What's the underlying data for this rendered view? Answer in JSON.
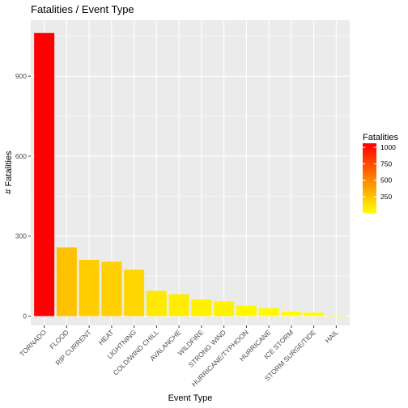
{
  "chart_data": {
    "type": "bar",
    "title": "Fatalities / Event Type",
    "xlabel": "Event Type",
    "ylabel": "# Fatalities",
    "categories": [
      "TORNADO",
      "FLOOD",
      "RIP CURRENT",
      "HEAT",
      "LIGHTNING",
      "COLD/WIND CHILL",
      "AVALANCHE",
      "WILDFIRE",
      "STRONG WIND",
      "HURRICANE/TYPHOON",
      "HURRICANE",
      "ICE STORM",
      "STORM SURGE/TIDE",
      "HAIL"
    ],
    "values": [
      1062,
      258,
      211,
      204,
      174,
      95,
      82,
      62,
      55,
      39,
      30,
      17,
      13,
      3
    ],
    "ylim": [
      -35,
      1110
    ],
    "yticks": [
      0,
      300,
      600,
      900
    ],
    "grid": true,
    "legend": {
      "title": "Fatalities",
      "placement": "right",
      "ticks": [
        250,
        500,
        750,
        1000
      ],
      "range": [
        3,
        1062
      ],
      "color_low": "#FFFF00",
      "color_high": "#FF0000"
    }
  }
}
